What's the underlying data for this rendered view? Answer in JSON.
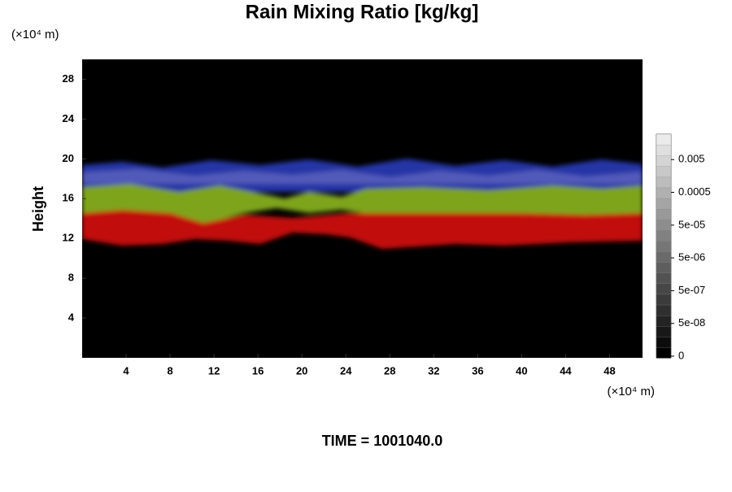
{
  "chart_data": {
    "type": "heatmap",
    "title": "Rain Mixing Ratio [kg/kg]",
    "y_label": "Height",
    "y_unit": "(×10⁴ m)",
    "x_unit": "(×10⁴ m)",
    "annotation": "TIME = 1001040.0",
    "xlim": [
      0,
      51
    ],
    "xticks": [
      4,
      8,
      12,
      16,
      20,
      24,
      28,
      32,
      36,
      40,
      44,
      48
    ],
    "ylim": [
      0,
      30
    ],
    "yticks": [
      4,
      8,
      12,
      16,
      20,
      24,
      28
    ],
    "colorbar": {
      "ticks": [
        0,
        {
          "value": 5e-08,
          "label": "5e-08"
        },
        {
          "value": 5e-07,
          "label": "5e-07"
        },
        {
          "value": 5e-06,
          "label": "5e-06"
        },
        {
          "value": 5e-05,
          "label": "5e-05"
        },
        0.0005,
        0.005
      ]
    }
  }
}
